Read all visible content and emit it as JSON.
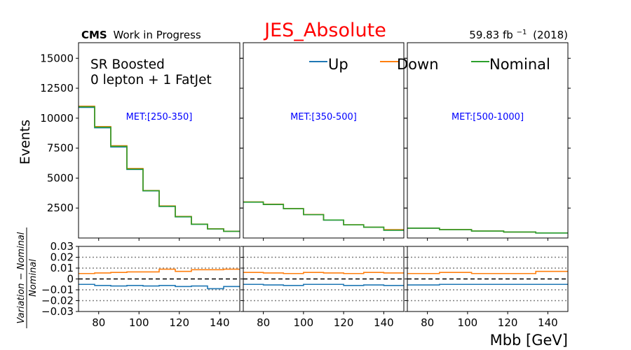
{
  "header": {
    "cms_bold": "CMS",
    "cms_rest": "Work in Progress",
    "title": "JES_Absolute",
    "lumi_value": "59.83 fb",
    "lumi_exp": "−1",
    "lumi_year": "(2018)",
    "region_line1": "SR Boosted",
    "region_line2": "0 lepton + 1 FatJet"
  },
  "colors": {
    "up": "#1f77b4",
    "down": "#ff7f0e",
    "nominal": "#2ca02c",
    "title": "#ff0000",
    "met_label": "#0000ff"
  },
  "chart_data": {
    "type": "line",
    "drawstyle": "steps",
    "title": "JES_Absolute",
    "xlabel": "Mbb [GeV]",
    "ylabel": "Events",
    "ratio_ylabel": "Variation−Nominal / Nominal",
    "legend": [
      "Up",
      "Down",
      "Nominal"
    ],
    "legend_placement": "top",
    "xlim": [
      70,
      150
    ],
    "ylim": [
      0,
      16300
    ],
    "ratio_ylim": [
      -0.03,
      0.03
    ],
    "x_ticks": [
      "80",
      "100",
      "120",
      "140"
    ],
    "y_ticks": [
      "2500",
      "5000",
      "7500",
      "10000",
      "12500",
      "15000"
    ],
    "ratio_ticks": [
      "0.03",
      "0.02",
      "0.01",
      "0",
      "−0.01",
      "−0.02",
      "−0.03"
    ],
    "panels": [
      {
        "met_label": "MET:[250-350]",
        "bin_edges": [
          70,
          78,
          86,
          94,
          102,
          110,
          118,
          126,
          134,
          142,
          150
        ],
        "series": [
          {
            "name": "Nominal",
            "values": [
              10950,
              9250,
              7650,
              5750,
              3950,
              2650,
              1780,
              1150,
              760,
              560
            ]
          },
          {
            "name": "Up",
            "values": [
              10900,
              9200,
              7600,
              5720,
              3930,
              2630,
              1765,
              1140,
              755,
              555
            ]
          },
          {
            "name": "Down",
            "values": [
              11000,
              9300,
              7700,
              5800,
              3960,
              2680,
              1800,
              1160,
              770,
              565
            ]
          }
        ],
        "ratio": [
          {
            "name": "Up",
            "values": [
              -0.005,
              -0.006,
              -0.0065,
              -0.006,
              -0.0065,
              -0.006,
              -0.007,
              -0.0065,
              -0.009,
              -0.007
            ]
          },
          {
            "name": "Down",
            "values": [
              0.005,
              0.0055,
              0.006,
              0.0065,
              0.0065,
              0.009,
              0.007,
              0.0085,
              0.0085,
              0.009
            ]
          }
        ]
      },
      {
        "met_label": "MET:[350-500]",
        "bin_edges": [
          70,
          80,
          90,
          100,
          110,
          120,
          130,
          140,
          150
        ],
        "series": [
          {
            "name": "Nominal",
            "values": [
              3000,
              2800,
              2450,
              1950,
              1500,
              1100,
              900,
              650
            ]
          },
          {
            "name": "Up",
            "values": [
              2990,
              2790,
              2440,
              1945,
              1495,
              1095,
              895,
              645
            ]
          },
          {
            "name": "Down",
            "values": [
              3010,
              2820,
              2460,
              1965,
              1505,
              1105,
              905,
              700
            ]
          }
        ],
        "ratio": [
          {
            "name": "Up",
            "values": [
              -0.005,
              -0.0055,
              -0.006,
              -0.005,
              -0.005,
              -0.006,
              -0.0055,
              -0.006
            ]
          },
          {
            "name": "Down",
            "values": [
              0.006,
              0.0055,
              0.005,
              0.006,
              0.0055,
              0.005,
              0.006,
              0.0055
            ]
          }
        ]
      },
      {
        "met_label": "MET:[500-1000]",
        "bin_edges": [
          70,
          86,
          102,
          118,
          134,
          150
        ],
        "series": [
          {
            "name": "Nominal",
            "values": [
              820,
              700,
              580,
              500,
              420
            ]
          },
          {
            "name": "Up",
            "values": [
              815,
              695,
              575,
              497,
              417
            ]
          },
          {
            "name": "Down",
            "values": [
              825,
              705,
              584,
              503,
              424
            ]
          }
        ],
        "ratio": [
          {
            "name": "Up",
            "values": [
              -0.0055,
              -0.005,
              -0.005,
              -0.005,
              -0.005
            ]
          },
          {
            "name": "Down",
            "values": [
              0.005,
              0.006,
              0.005,
              0.005,
              0.007
            ]
          }
        ]
      }
    ]
  }
}
